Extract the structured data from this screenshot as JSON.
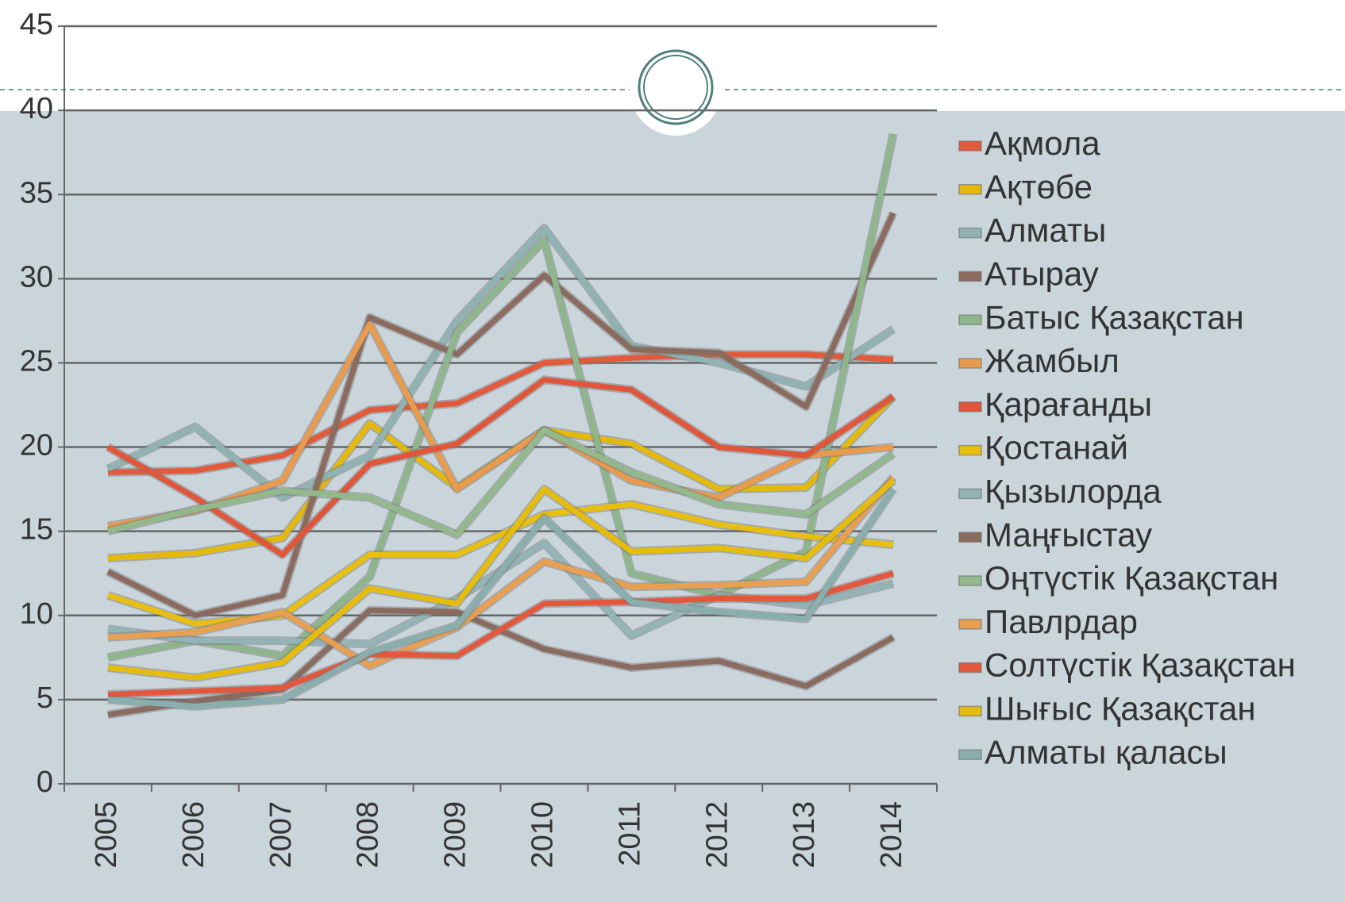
{
  "chart_data": {
    "type": "line",
    "categories": [
      "2005",
      "2006",
      "2007",
      "2008",
      "2009",
      "2010",
      "2011",
      "2012",
      "2013",
      "2014"
    ],
    "ylim": [
      0,
      45
    ],
    "yticks": [
      0,
      5,
      10,
      15,
      20,
      25,
      30,
      35,
      40,
      45
    ],
    "grid": true,
    "legend": "right",
    "series": [
      {
        "name": "Ақмола",
        "color": "#e25a3a",
        "values": [
          18.5,
          18.6,
          19.5,
          22.2,
          22.6,
          25,
          25.3,
          25.5,
          25.5,
          25.2
        ]
      },
      {
        "name": "Ақтөбе",
        "color": "#e4b90a",
        "values": [
          13.4,
          13.7,
          14.6,
          21.4,
          17.6,
          21,
          20.2,
          17.5,
          17.6,
          23
        ]
      },
      {
        "name": "Алматы",
        "color": "#8fb3b3",
        "values": [
          18.7,
          21.2,
          17,
          19.5,
          27.5,
          33,
          26,
          25,
          23.6,
          27
        ]
      },
      {
        "name": "Атырау",
        "color": "#8c6a5e",
        "values": [
          12.6,
          10,
          11.2,
          27.7,
          25.5,
          30.2,
          25.8,
          25.6,
          22.4,
          33.9
        ]
      },
      {
        "name": "Батыс Қазақстан",
        "color": "#8db68a",
        "values": [
          7.5,
          8.5,
          7.6,
          12.3,
          26.8,
          32.3,
          12.5,
          11.2,
          13.8,
          38.6
        ]
      },
      {
        "name": "Жамбыл",
        "color": "#e99a4d",
        "values": [
          15.3,
          16.2,
          18,
          27.3,
          17.5,
          21,
          18,
          17,
          19.5,
          20
        ]
      },
      {
        "name": "Қарағанды",
        "color": "#e0563b",
        "values": [
          20,
          17,
          13.6,
          19,
          20.2,
          24,
          23.4,
          20,
          19.5,
          23
        ]
      },
      {
        "name": "Қостанай",
        "color": "#e8bf10",
        "values": [
          11.2,
          9.5,
          10,
          13.6,
          13.6,
          16,
          16.6,
          15.4,
          14.7,
          14.2
        ]
      },
      {
        "name": "Қызылорда",
        "color": "#93b4b6",
        "values": [
          9.2,
          8.5,
          8.5,
          8.3,
          11,
          14.3,
          8.8,
          11.2,
          10.6,
          11.9
        ]
      },
      {
        "name": "Маңғыстау",
        "color": "#8a6b60",
        "values": [
          4.1,
          4.9,
          5.6,
          10.3,
          10.2,
          8,
          6.9,
          7.3,
          5.8,
          8.7
        ]
      },
      {
        "name": "Оңтүстік Қазақстан",
        "color": "#92b98c",
        "values": [
          15,
          16.3,
          17.4,
          17,
          14.8,
          21,
          18.5,
          16.6,
          16,
          19.6
        ]
      },
      {
        "name": "Павлрдар",
        "color": "#e8a050",
        "values": [
          8.7,
          9,
          10.2,
          7,
          9.3,
          13.2,
          11.7,
          11.8,
          12,
          18.2
        ]
      },
      {
        "name": "Солтүстік Қазақстан",
        "color": "#e3583c",
        "values": [
          5.3,
          5.5,
          5.7,
          7.7,
          7.6,
          10.7,
          10.8,
          11,
          11,
          12.5
        ]
      },
      {
        "name": "Шығыс Қазақстан",
        "color": "#e6bc0c",
        "values": [
          6.9,
          6.3,
          7.2,
          11.6,
          10.7,
          17.5,
          13.8,
          14,
          13.4,
          18
        ]
      },
      {
        "name": "Алматы қаласы",
        "color": "#88aeae",
        "values": [
          5,
          4.6,
          5,
          7.8,
          9.4,
          15.8,
          10.8,
          10.2,
          9.8,
          17.5
        ]
      }
    ]
  }
}
